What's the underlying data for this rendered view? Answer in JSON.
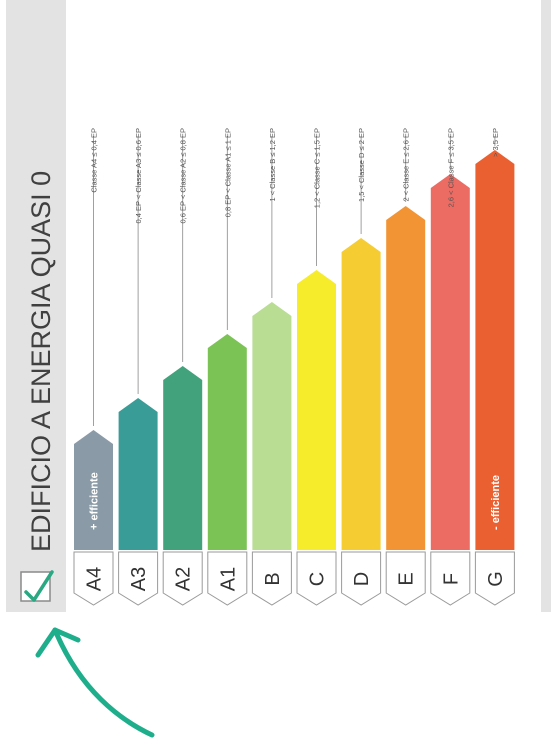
{
  "title": "EDIFICIO A ENERGIA QUASI 0",
  "colors": {
    "panel_bg": "#e3e3e3",
    "check": "#2aa882",
    "arrow": "#1fae8c"
  },
  "efficiency_labels": {
    "best": "+ efficiente",
    "worst": "- efficiente"
  },
  "classes": [
    {
      "code": "A4",
      "rule": "Classe A4 ≤ 0,4 EP",
      "color": "#8a9aa6",
      "height": 0.3
    },
    {
      "code": "A3",
      "rule": "0,4 EP < Classe A3 ≤ 0,6 EP",
      "color": "#3a9c96",
      "height": 0.38
    },
    {
      "code": "A2",
      "rule": "0,6 EP < Classe A2 ≤ 0,8 EP",
      "color": "#41a27c",
      "height": 0.46
    },
    {
      "code": "A1",
      "rule": "0,8 EP < Classe A1 ≤ 1 EP",
      "color": "#7cc356",
      "height": 0.54
    },
    {
      "code": "B",
      "rule": "1 < Classe B ≤ 1,2 EP",
      "color": "#b8dd93",
      "height": 0.62
    },
    {
      "code": "C",
      "rule": "1,2 < Classe C ≤ 1,5 EP",
      "color": "#f6ec2c",
      "height": 0.7
    },
    {
      "code": "D",
      "rule": "1,5 < Classe D ≤ 2 EP",
      "color": "#f6cc33",
      "height": 0.78
    },
    {
      "code": "E",
      "rule": "2 < Classe E ≤ 2,6 EP",
      "color": "#f29334",
      "height": 0.86
    },
    {
      "code": "F",
      "rule": "2,6 < Classe F ≤ 3,5 EP",
      "color": "#ec6b63",
      "height": 0.94
    },
    {
      "code": "G",
      "rule": "> 3,5 EP",
      "color": "#eb6030",
      "height": 1.0
    }
  ]
}
